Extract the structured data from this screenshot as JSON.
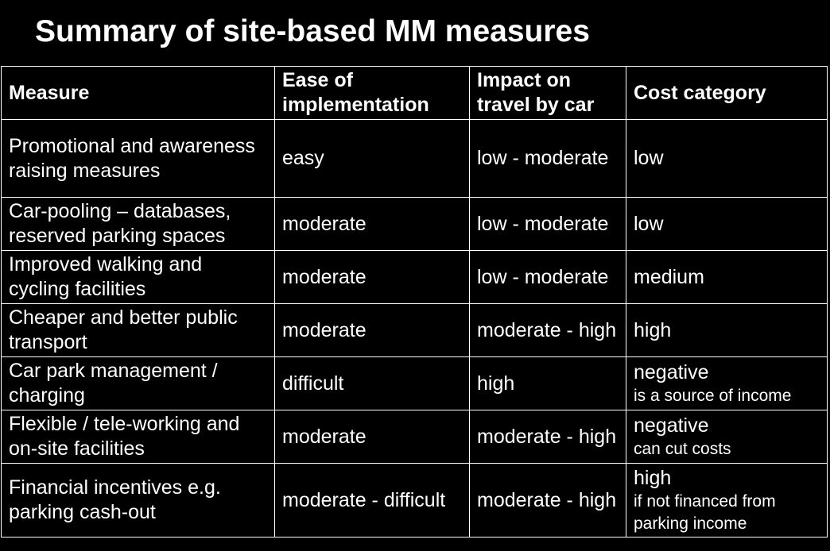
{
  "title": "Summary of site-based MM measures",
  "table": {
    "headers": [
      "Measure",
      "Ease of implementation",
      "Impact on travel by car",
      "Cost category"
    ],
    "rows": [
      {
        "measure": "Promotional and awareness raising measures",
        "ease": "easy",
        "impact": "low - moderate",
        "cost": "low",
        "cost_note": ""
      },
      {
        "measure": "Car-pooling – databases, reserved parking spaces",
        "ease": "moderate",
        "impact": "low - moderate",
        "cost": "low",
        "cost_note": ""
      },
      {
        "measure": "Improved walking and cycling facilities",
        "ease": "moderate",
        "impact": "low - moderate",
        "cost": "medium",
        "cost_note": ""
      },
      {
        "measure": "Cheaper and better public transport",
        "ease": "moderate",
        "impact": "moderate - high",
        "cost": "high",
        "cost_note": ""
      },
      {
        "measure": "Car park management / charging",
        "ease": "difficult",
        "impact": "high",
        "cost": "negative",
        "cost_note": "is a source of income"
      },
      {
        "measure": "Flexible / tele-working and on-site facilities",
        "ease": "moderate",
        "impact": "moderate - high",
        "cost": "negative",
        "cost_note": "can cut costs"
      },
      {
        "measure": "Financial incentives e.g. parking cash-out",
        "ease": "moderate - difficult",
        "impact": "moderate - high",
        "cost": "high",
        "cost_note": "if not financed from parking income"
      }
    ]
  },
  "colors": {
    "background": "#000000",
    "text": "#ffffff",
    "border": "#ffffff"
  }
}
